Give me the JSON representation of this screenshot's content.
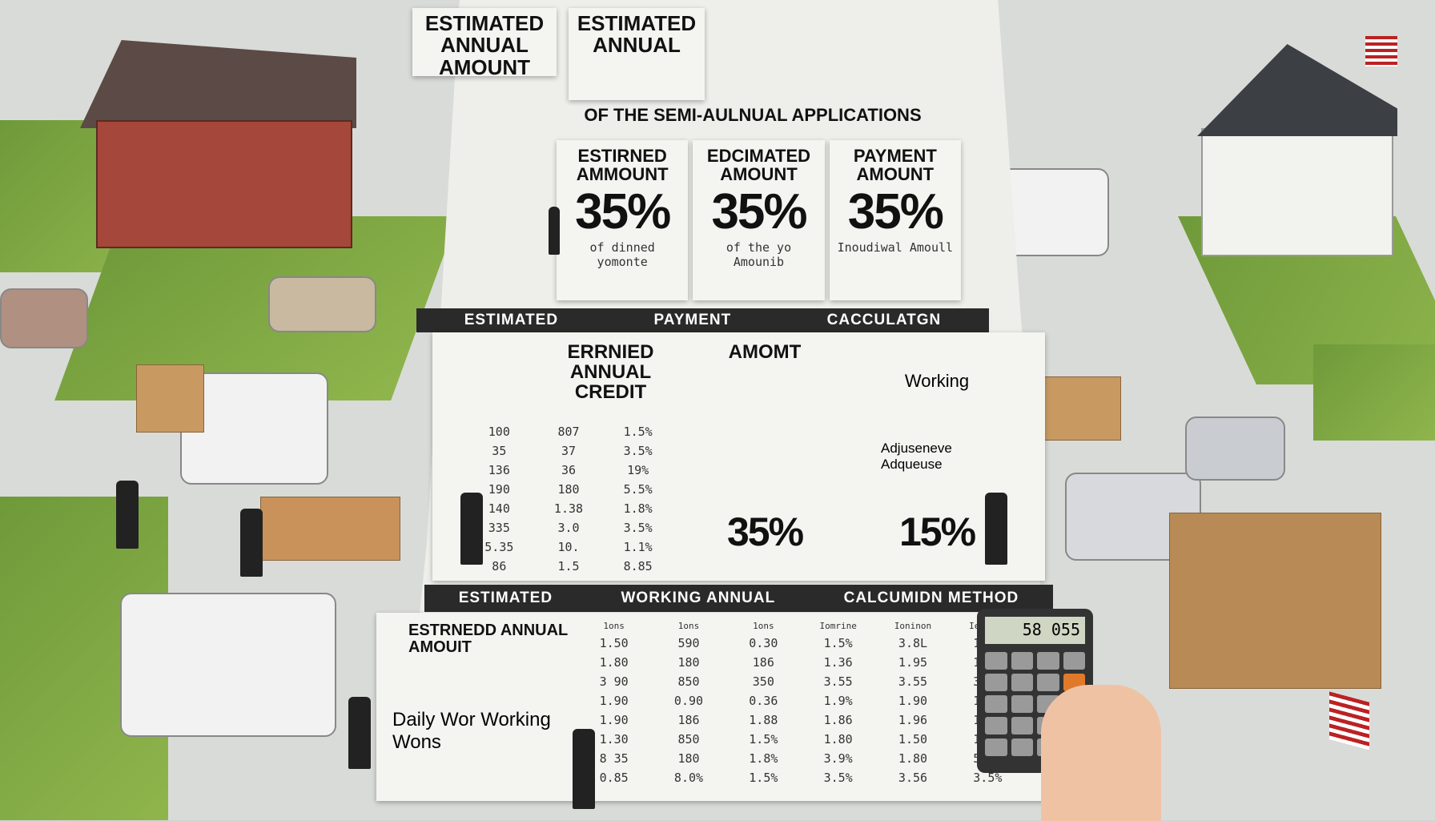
{
  "top_headers": [
    "ESTIMATED ANNUAL AMOUNT",
    "ESTIMATED ANNUAL"
  ],
  "subtitle": "OF THE SEMI-AULNUAL APPLICATIONS",
  "top_columns": [
    {
      "label": "ESTIRNED AMMOUNT",
      "value": "35%",
      "note": "of dinned yomonte"
    },
    {
      "label": "EDCIMATED AMOUNT",
      "value": "35%",
      "note": "of the yo Amounib"
    },
    {
      "label": "PAYMENT AMOUNT",
      "value": "35%",
      "note": "Inoudiwal Amoull"
    }
  ],
  "band1": [
    "ESTIMATED",
    "PAYMENT",
    "CACCULATGN"
  ],
  "mid": {
    "credit_label": "ERRNIED ANNUAL CREDIT",
    "amount_label": "AMOMT",
    "working_label": "Working",
    "left_rows": [
      [
        "100",
        "807",
        "1.5%"
      ],
      [
        "35",
        "37",
        "3.5%"
      ],
      [
        "136",
        "36",
        "19%"
      ],
      [
        "190",
        "180",
        "5.5%"
      ],
      [
        "140",
        "1.38",
        "1.8%"
      ],
      [
        "335",
        "3.0",
        "3.5%"
      ],
      [
        "5.35",
        "10.",
        "1.1%"
      ],
      [
        "86",
        "1.5",
        "8.85"
      ]
    ],
    "pct_a": "35%",
    "pct_b": "15%",
    "adjust_label": "Adjuseneve Adqueuse"
  },
  "band2": [
    "ESTIMATED",
    "WORKING ANNUAL",
    "CALCUMIDN METHOD"
  ],
  "bottom": {
    "label1": "ESTRNEDD ANNUAL AMOUIT",
    "label2": "Daily Wor Working Wons",
    "headers": [
      "1ons",
      "1ons",
      "1ons",
      "Iomrine",
      "Ioninon",
      "Iethood"
    ],
    "rows": [
      [
        "1.50",
        "590",
        "0.30",
        "1.5%",
        "3.8L",
        "1.8%"
      ],
      [
        "1.80",
        "180",
        "186",
        "1.36",
        "1.95",
        "1.86"
      ],
      [
        "3 90",
        "850",
        "350",
        "3.55",
        "3.55",
        "3.50"
      ],
      [
        "1.90",
        "0.90",
        "0.36",
        "1.9%",
        "1.90",
        "1.85"
      ],
      [
        "1.90",
        "186",
        "1.88",
        "1.86",
        "1.96",
        "1.95"
      ],
      [
        "1.30",
        "850",
        "1.5%",
        "1.80",
        "1.50",
        "1.50"
      ],
      [
        "8 35",
        "180",
        "1.8%",
        "3.9%",
        "1.80",
        "5.9%"
      ],
      [
        "0.85",
        "8.0%",
        "1.5%",
        "3.5%",
        "3.56",
        "3.5%"
      ]
    ]
  },
  "calculator_display": "58 055",
  "colors": {
    "grass": "#7ea443",
    "road": "#d9dbd8",
    "brick": "#a5473a",
    "band": "#2a2a2a",
    "paper": "#f4f4f1"
  }
}
